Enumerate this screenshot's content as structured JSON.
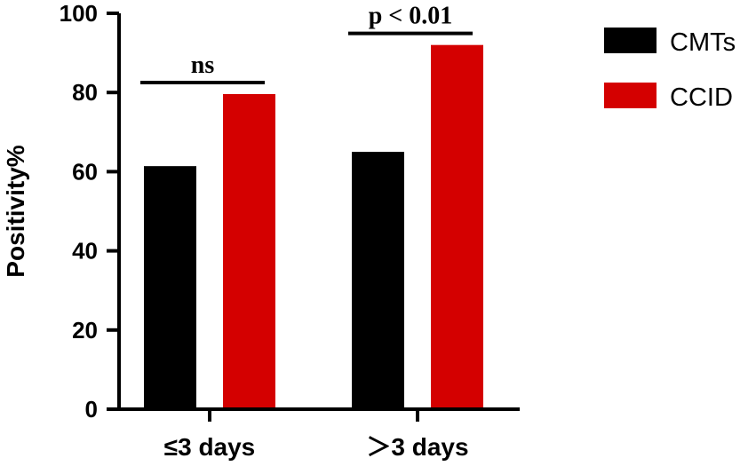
{
  "chart_data": {
    "type": "bar",
    "categories": [
      "≤3 days",
      "＞3 days"
    ],
    "series": [
      {
        "name": "CMTs",
        "values": [
          61.4,
          65.0
        ],
        "color": "#000000"
      },
      {
        "name": "CCID",
        "values": [
          79.6,
          92.0
        ],
        "color": "#d40000"
      }
    ],
    "ylabel": "Positivity%",
    "xlabel": "",
    "ylim": [
      0,
      100
    ],
    "yticks": [
      0,
      20,
      40,
      60,
      80,
      100
    ],
    "legend_position": "top-right",
    "grid": false,
    "annotations": [
      {
        "category_index": 0,
        "text": "ns"
      },
      {
        "category_index": 1,
        "text": "p < 0.01"
      }
    ]
  }
}
